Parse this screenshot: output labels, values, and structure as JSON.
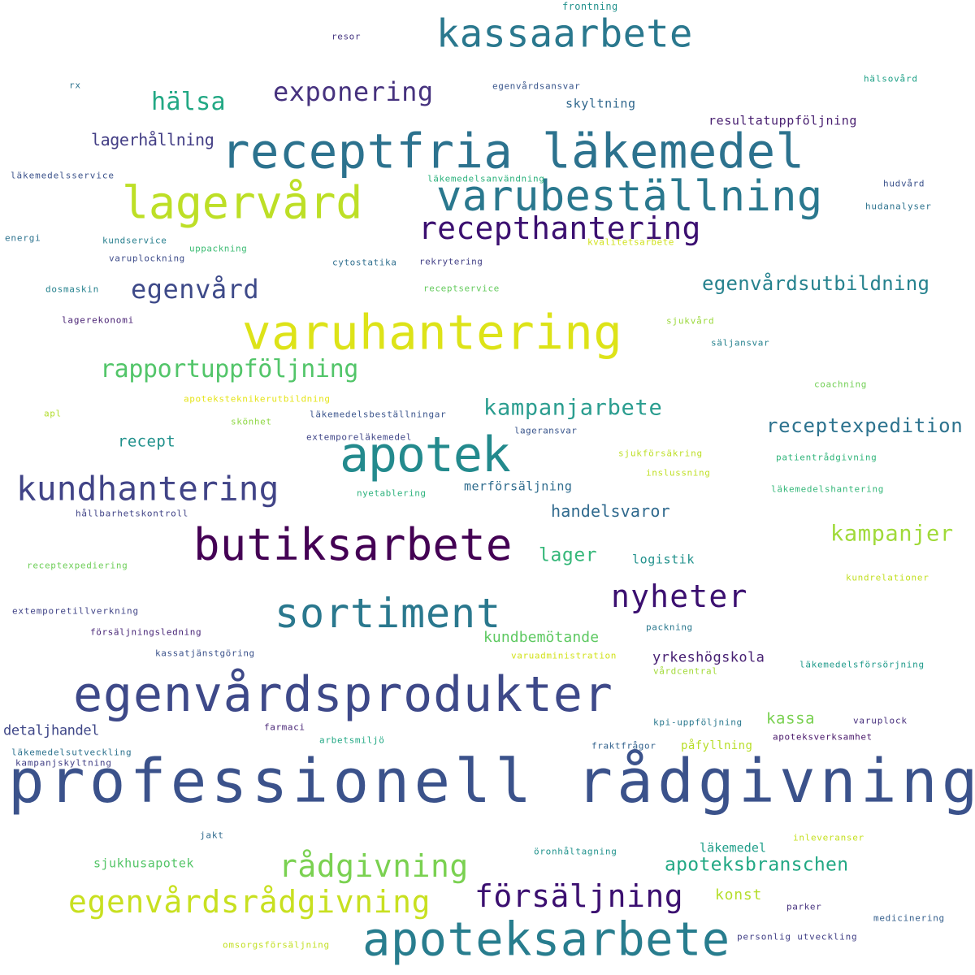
{
  "palette": "viridis",
  "words": [
    {
      "text": "professionell rådgivning",
      "color": "#3b528b"
    },
    {
      "text": "egenvårdsprodukter",
      "color": "#3e4989"
    },
    {
      "text": "receptfria läkemedel",
      "color": "#2c728e"
    },
    {
      "text": "butiksarbete",
      "color": "#440154"
    },
    {
      "text": "varuhantering",
      "color": "#dde318"
    },
    {
      "text": "apoteksarbete",
      "color": "#287d8e"
    },
    {
      "text": "lagervård",
      "color": "#bddf26"
    },
    {
      "text": "apotek",
      "color": "#238a8d"
    },
    {
      "text": "varubeställning",
      "color": "#2a788e"
    },
    {
      "text": "kassaarbete",
      "color": "#2a788e"
    },
    {
      "text": "sortiment",
      "color": "#2a788e"
    },
    {
      "text": "kundhantering",
      "color": "#414487"
    },
    {
      "text": "egenvårdsrådgivning",
      "color": "#c8e020"
    },
    {
      "text": "försäljning",
      "color": "#3b0f70"
    },
    {
      "text": "rådgivning",
      "color": "#7ad151"
    },
    {
      "text": "recepthantering",
      "color": "#3b0f70"
    },
    {
      "text": "nyheter",
      "color": "#3b0f70"
    },
    {
      "text": "exponering",
      "color": "#46327e"
    },
    {
      "text": "egenvård",
      "color": "#3e4a89"
    },
    {
      "text": "hälsa",
      "color": "#22a884"
    },
    {
      "text": "rapportuppföljning",
      "color": "#52c569"
    },
    {
      "text": "kampanjarbete",
      "color": "#2a9d8f"
    },
    {
      "text": "kampanjer",
      "color": "#a0da39"
    },
    {
      "text": "receptexpedition",
      "color": "#2c728e"
    },
    {
      "text": "egenvårdsutbildning",
      "color": "#26828e"
    },
    {
      "text": "apoteksbranschen",
      "color": "#22a884"
    },
    {
      "text": "lager",
      "color": "#35b779"
    },
    {
      "text": "handelsvaror",
      "color": "#306a8e"
    },
    {
      "text": "lagerhållning",
      "color": "#433e85"
    },
    {
      "text": "recept",
      "color": "#21918c"
    },
    {
      "text": "kundbemötande",
      "color": "#5ec962"
    },
    {
      "text": "yrkeshögskola",
      "color": "#482173"
    },
    {
      "text": "detaljhandel",
      "color": "#3f4788"
    },
    {
      "text": "kassa",
      "color": "#7ad151"
    },
    {
      "text": "konst",
      "color": "#b5de2b"
    },
    {
      "text": "läkemedel",
      "color": "#1f9e89"
    },
    {
      "text": "sjukhusapotek",
      "color": "#54c568"
    },
    {
      "text": "logistik",
      "color": "#21918c"
    },
    {
      "text": "merförsäljning",
      "color": "#2f6c8e"
    },
    {
      "text": "skyltning",
      "color": "#31688e"
    },
    {
      "text": "resultatuppföljning",
      "color": "#481f70"
    },
    {
      "text": "påfyllning",
      "color": "#b8de29"
    },
    {
      "text": "frontning",
      "color": "#21918c"
    },
    {
      "text": "resor",
      "color": "#453581"
    },
    {
      "text": "rx",
      "color": "#2c728e"
    },
    {
      "text": "egenvårdsansvar",
      "color": "#39568c"
    },
    {
      "text": "hälsovård",
      "color": "#1fa187"
    },
    {
      "text": "läkemedelsservice",
      "color": "#3b528b"
    },
    {
      "text": "läkemedelsanvändning",
      "color": "#2db27d"
    },
    {
      "text": "hudvård",
      "color": "#3b528b"
    },
    {
      "text": "hudanalyser",
      "color": "#2c728e"
    },
    {
      "text": "energi",
      "color": "#2c728e"
    },
    {
      "text": "kundservice",
      "color": "#277f8e"
    },
    {
      "text": "uppackning",
      "color": "#3dbc74"
    },
    {
      "text": "kvalitetsarbete",
      "color": "#d0e11c"
    },
    {
      "text": "varuplockning",
      "color": "#3e4c8a"
    },
    {
      "text": "cytostatika",
      "color": "#2e6e8e"
    },
    {
      "text": "rekrytering",
      "color": "#424086"
    },
    {
      "text": "dosmaskin",
      "color": "#26828e"
    },
    {
      "text": "receptservice",
      "color": "#65cb5e"
    },
    {
      "text": "lagerekonomi",
      "color": "#482173"
    },
    {
      "text": "sjukvård",
      "color": "#9bd93c"
    },
    {
      "text": "säljansvar",
      "color": "#26828e"
    },
    {
      "text": "coachning",
      "color": "#73d056"
    },
    {
      "text": "apoteksteknikerutbildning",
      "color": "#e5e419"
    },
    {
      "text": "apl",
      "color": "#b2dd2d"
    },
    {
      "text": "skönhet",
      "color": "#8fd744"
    },
    {
      "text": "läkemedelsbeställningar",
      "color": "#3a548c"
    },
    {
      "text": "extemporeläkemedel",
      "color": "#404688"
    },
    {
      "text": "lageransvar",
      "color": "#39558c"
    },
    {
      "text": "sjukförsäkring",
      "color": "#bddf26"
    },
    {
      "text": "patientrådgivning",
      "color": "#31b57b"
    },
    {
      "text": "inslussning",
      "color": "#c0df25"
    },
    {
      "text": "nyetablering",
      "color": "#2db27d"
    },
    {
      "text": "läkemedelshantering",
      "color": "#35b779"
    },
    {
      "text": "hållbarhetskontroll",
      "color": "#414487"
    },
    {
      "text": "receptexpediering",
      "color": "#6ece58"
    },
    {
      "text": "kundrelationer",
      "color": "#c2df23"
    },
    {
      "text": "extemporetillverkning",
      "color": "#414487"
    },
    {
      "text": "försäljningsledning",
      "color": "#482677"
    },
    {
      "text": "packning",
      "color": "#2a788e"
    },
    {
      "text": "kassatjänstgöring",
      "color": "#3b528b"
    },
    {
      "text": "varuadministration",
      "color": "#d2e21b"
    },
    {
      "text": "läkemedelsförsörjning",
      "color": "#1f9a8a"
    },
    {
      "text": "vårdcentral",
      "color": "#a2da37"
    },
    {
      "text": "kpi-uppföljning",
      "color": "#2a788e"
    },
    {
      "text": "varuplock",
      "color": "#472f7d"
    },
    {
      "text": "farmaci",
      "color": "#482576"
    },
    {
      "text": "arbetsmiljö",
      "color": "#22a884"
    },
    {
      "text": "fraktfrågor",
      "color": "#33628d"
    },
    {
      "text": "apoteksverksamhet",
      "color": "#481769"
    },
    {
      "text": "läkemedelsutveckling",
      "color": "#2c728e"
    },
    {
      "text": "kampanjskyltning",
      "color": "#424086"
    },
    {
      "text": "jakt",
      "color": "#306a8e"
    },
    {
      "text": "inleveranser",
      "color": "#c5e021"
    },
    {
      "text": "öronhåltagning",
      "color": "#20928c"
    },
    {
      "text": "parker",
      "color": "#46327e"
    },
    {
      "text": "medicinering",
      "color": "#355f8d"
    },
    {
      "text": "personlig utveckling",
      "color": "#424086"
    },
    {
      "text": "omsorgsförsäljning",
      "color": "#c2df23"
    }
  ]
}
